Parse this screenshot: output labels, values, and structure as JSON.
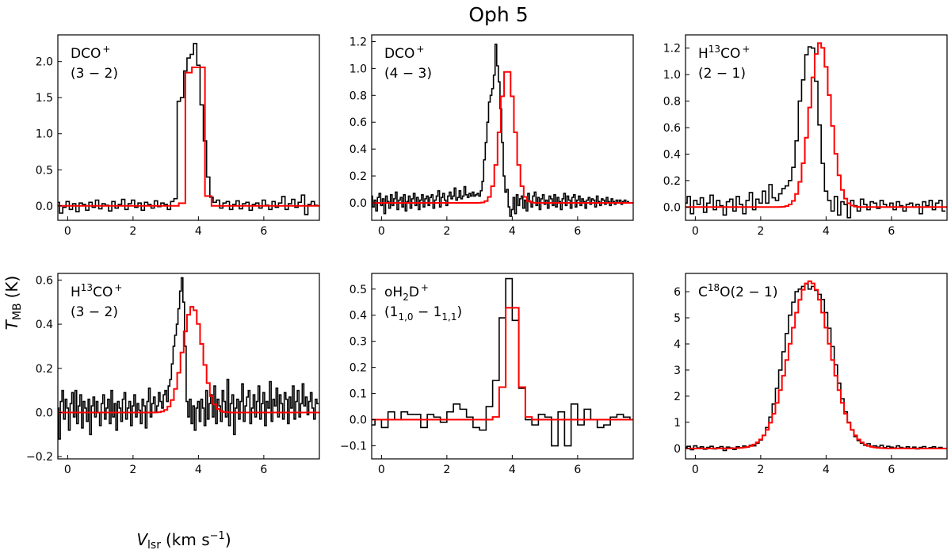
{
  "title": "Oph 5",
  "xlabel": "V",
  "xlabel_sub": "lsr",
  "xlabel_units": "(km s",
  "xlabel_units_sup": "−1",
  "xlabel_units_end": ")",
  "ylabel": "T",
  "ylabel_sub": "MB",
  "ylabel_units": "(K)",
  "colors": {
    "observed": "#000000",
    "model": "#ff0000",
    "axes": "#000000",
    "background": "#ffffff"
  },
  "chart_data": [
    {
      "type": "line",
      "label_parts": [
        {
          "text": "DCO",
          "sup": "+"
        },
        {
          "text": "(3 − 2)",
          "newline": true
        }
      ],
      "xlim": [
        -0.3,
        7.7
      ],
      "ylim": [
        -0.2,
        2.37
      ],
      "xticks": [
        0,
        2,
        4,
        6
      ],
      "yticks": [
        0.0,
        0.5,
        1.0,
        1.5,
        2.0
      ],
      "ytick_decimals": 1,
      "model": {
        "center": 3.92,
        "amplitude": 1.92,
        "width": 0.36,
        "flat": true,
        "step": 0.2
      },
      "observed": {
        "step": 0.1,
        "x_start": -0.3,
        "values": [
          0.05,
          -0.1,
          -0.02,
          0.06,
          -0.05,
          0.03,
          -0.08,
          0.04,
          0.02,
          -0.06,
          0.05,
          -0.02,
          0.08,
          -0.04,
          0.03,
          0.01,
          -0.07,
          0.06,
          -0.03,
          0.02,
          0.09,
          -0.05,
          0.03,
          0.08,
          -0.02,
          0.04,
          -0.06,
          0.05,
          0.02,
          -0.03,
          0.07,
          -0.01,
          0.04,
          0.02,
          -0.05,
          0.06,
          0.1,
          1.45,
          1.5,
          1.87,
          2.05,
          2.1,
          2.25,
          1.95,
          1.4,
          0.9,
          0.4,
          0.12,
          0.05,
          0.08,
          -0.03,
          0.04,
          0.06,
          -0.05,
          0.02,
          0.07,
          -0.04,
          0.03,
          0.05,
          -0.06,
          0.02,
          0.04,
          -0.03,
          0.08,
          0.01,
          -0.05,
          0.06,
          -0.02,
          0.04,
          0.13,
          -0.05,
          0.03,
          0.09,
          -0.02,
          0.05,
          0.15,
          -0.12,
          0.02,
          0.06,
          0.01
        ]
      }
    },
    {
      "type": "line",
      "label_parts": [
        {
          "text": "DCO",
          "sup": "+"
        },
        {
          "text": "(4 − 3)",
          "newline": true
        }
      ],
      "xlim": [
        -0.3,
        7.7
      ],
      "ylim": [
        -0.13,
        1.25
      ],
      "xticks": [
        0,
        2,
        4,
        6
      ],
      "yticks": [
        0.0,
        0.2,
        0.4,
        0.6,
        0.8,
        1.0,
        1.2
      ],
      "ytick_decimals": 1,
      "model": {
        "center": 3.85,
        "amplitude": 1.0,
        "width": 0.22,
        "flat": false,
        "step": 0.1
      },
      "observed": {
        "step": 0.05,
        "x_start": -0.3,
        "values": [
          0.05,
          -0.03,
          0.02,
          -0.06,
          0.04,
          0.07,
          -0.02,
          0.03,
          -0.08,
          0.05,
          0.01,
          -0.04,
          0.06,
          -0.02,
          0.03,
          0.08,
          -0.05,
          0.02,
          0.04,
          -0.03,
          0.06,
          -0.06,
          0.01,
          0.05,
          -0.04,
          0.03,
          0.07,
          -0.02,
          0.04,
          -0.05,
          0.02,
          0.06,
          -0.03,
          0.03,
          0.05,
          -0.02,
          0.04,
          0.06,
          -0.04,
          0.02,
          0.05,
          0.09,
          -0.03,
          0.04,
          0.07,
          0.02,
          -0.02,
          0.05,
          0.08,
          0.03,
          0.05,
          0.11,
          0.02,
          0.04,
          0.09,
          0.03,
          0.05,
          0.12,
          0.06,
          0.04,
          0.07,
          0.05,
          0.08,
          0.05,
          0.06,
          0.07,
          0.05,
          0.09,
          0.16,
          0.32,
          0.45,
          0.6,
          0.75,
          0.8,
          0.85,
          0.95,
          1.18,
          1.02,
          0.9,
          0.7,
          0.45,
          0.2,
          0.08,
          0.1,
          -0.03,
          -0.1,
          -0.05,
          0.04,
          -0.08,
          0.06,
          -0.02,
          0.03,
          0.05,
          -0.04,
          0.02,
          -0.06,
          0.07,
          0.01,
          -0.03,
          0.05,
          0.08,
          -0.02,
          0.04,
          -0.05,
          0.03,
          0.06,
          -0.01,
          0.02,
          -0.04,
          0.05,
          0.03,
          -0.02,
          0.06,
          -0.03,
          0.04,
          0.01,
          -0.05,
          0.03,
          0.07,
          -0.02,
          0.05,
          0.02,
          -0.04,
          0.04,
          0.06,
          -0.03,
          0.02,
          0.05,
          -0.02,
          0.03,
          0.01,
          -0.04,
          0.02,
          0.04,
          -0.01,
          0.03,
          0.02,
          -0.03,
          0.05,
          0.01,
          -0.02,
          0.03,
          0.02,
          -0.01,
          0.04,
          0.01,
          -0.02,
          0.03,
          0.01,
          -0.01,
          0.02,
          0.0,
          0.02,
          -0.01,
          0.01,
          0.02,
          0.0,
          0.01
        ]
      }
    },
    {
      "type": "line",
      "label_parts": [
        {
          "text": "H"
        },
        {
          "text": "13",
          "sup_only": true
        },
        {
          "text": "CO",
          "sup": "+"
        },
        {
          "text": "(2 − 1)",
          "newline": true
        }
      ],
      "xlim": [
        -0.3,
        7.7
      ],
      "ylim": [
        -0.1,
        1.3
      ],
      "xticks": [
        0,
        2,
        4,
        6
      ],
      "yticks": [
        0.0,
        0.2,
        0.4,
        0.6,
        0.8,
        1.0,
        1.2
      ],
      "ytick_decimals": 1,
      "model": {
        "center": 3.82,
        "amplitude": 1.24,
        "width": 0.32,
        "flat": false,
        "step": 0.1
      },
      "observed": {
        "step": 0.1,
        "x_start": -0.3,
        "values": [
          0.03,
          0.08,
          -0.05,
          0.05,
          0.02,
          0.07,
          -0.04,
          0.03,
          0.09,
          -0.02,
          0.05,
          0.01,
          -0.06,
          0.04,
          0.06,
          -0.03,
          0.08,
          0.02,
          -0.05,
          0.05,
          0.11,
          -0.02,
          0.06,
          0.03,
          0.12,
          0.03,
          0.17,
          0.07,
          0.05,
          0.1,
          0.14,
          0.16,
          0.2,
          0.3,
          0.5,
          0.8,
          0.96,
          1.15,
          1.21,
          1.2,
          0.95,
          0.62,
          0.33,
          0.12,
          0.05,
          -0.03,
          0.08,
          -0.06,
          0.04,
          0.02,
          -0.08,
          0.05,
          0.01,
          -0.03,
          0.06,
          0.02,
          -0.02,
          0.04,
          0.03,
          -0.01,
          0.05,
          0.02,
          0.0,
          0.03,
          -0.02,
          0.04,
          0.01,
          -0.03,
          0.02,
          0.03,
          0.0,
          0.02,
          -0.05,
          0.04,
          0.01,
          0.05,
          -0.02,
          0.03,
          0.05,
          -0.03
        ]
      }
    },
    {
      "type": "line",
      "label_parts": [
        {
          "text": "H"
        },
        {
          "text": "13",
          "sup_only": true
        },
        {
          "text": "CO",
          "sup": "+"
        },
        {
          "text": "(3 − 2)",
          "newline": true
        }
      ],
      "xlim": [
        -0.3,
        7.7
      ],
      "ylim": [
        -0.21,
        0.63
      ],
      "xticks": [
        0,
        2,
        4,
        6
      ],
      "yticks": [
        -0.2,
        0.0,
        0.2,
        0.4,
        0.6
      ],
      "ytick_decimals": 1,
      "model": {
        "center": 3.82,
        "amplitude": 0.48,
        "width": 0.3,
        "flat": false,
        "step": 0.1
      },
      "observed": {
        "step": 0.05,
        "x_start": -0.3,
        "values": [
          0.02,
          -0.12,
          0.05,
          0.1,
          -0.03,
          0.06,
          0.02,
          -0.08,
          0.04,
          0.09,
          -0.02,
          0.1,
          -0.05,
          0.03,
          0.08,
          -0.07,
          0.05,
          0.02,
          -0.04,
          0.06,
          -0.1,
          0.03,
          0.07,
          -0.02,
          0.05,
          0.0,
          -0.06,
          0.04,
          0.08,
          -0.03,
          0.02,
          0.06,
          -0.05,
          0.1,
          -0.02,
          0.04,
          -0.08,
          0.05,
          0.02,
          -0.04,
          0.06,
          0.09,
          -0.03,
          0.02,
          0.05,
          -0.06,
          0.03,
          0.08,
          -0.02,
          0.04,
          0.01,
          -0.05,
          0.06,
          0.03,
          -0.07,
          0.05,
          0.11,
          -0.02,
          0.04,
          0.07,
          0.0,
          0.03,
          0.09,
          0.05,
          0.02,
          0.08,
          0.1,
          0.05,
          0.12,
          0.15,
          0.22,
          0.3,
          0.35,
          0.4,
          0.47,
          0.55,
          0.61,
          0.5,
          0.3,
          0.05,
          -0.02,
          0.06,
          -0.05,
          0.03,
          -0.08,
          0.02,
          0.05,
          -0.04,
          0.06,
          0.02,
          -0.06,
          0.1,
          -0.03,
          0.04,
          0.08,
          -0.02,
          0.12,
          -0.05,
          0.06,
          0.03,
          -0.04,
          0.1,
          0.05,
          -0.02,
          0.15,
          -0.06,
          0.04,
          0.08,
          -0.1,
          0.02,
          0.06,
          -0.03,
          0.05,
          0.13,
          -0.04,
          0.03,
          0.07,
          0.1,
          -0.05,
          0.02,
          0.08,
          -0.02,
          0.05,
          0.12,
          -0.03,
          0.04,
          0.09,
          -0.06,
          0.05,
          0.02,
          0.14,
          -0.04,
          0.06,
          0.03,
          0.11,
          -0.02,
          0.08,
          0.04,
          -0.03,
          0.09,
          0.06,
          -0.05,
          0.07,
          0.02,
          0.12,
          -0.03,
          0.05,
          0.1,
          -0.02,
          0.04,
          0.13,
          0.03,
          0.07,
          -0.01,
          0.05,
          0.09,
          0.02,
          -0.03,
          0.06,
          0.04
        ]
      }
    },
    {
      "type": "line",
      "label_parts": [
        {
          "text": "oH"
        },
        {
          "text": "2",
          "sub_only": true
        },
        {
          "text": "D",
          "sup": "+"
        },
        {
          "text": "(1",
          "newline": true
        },
        {
          "text": "1,0",
          "sub_only": true
        },
        {
          "text": " − 1"
        },
        {
          "text": "1,1",
          "sub_only": true
        },
        {
          "text": ")"
        }
      ],
      "xlim": [
        -0.3,
        7.7
      ],
      "ylim": [
        -0.15,
        0.56
      ],
      "xticks": [
        0,
        2,
        4,
        6
      ],
      "yticks": [
        -0.1,
        0.0,
        0.1,
        0.2,
        0.3,
        0.4,
        0.5
      ],
      "ytick_decimals": 1,
      "model": {
        "center": 4.0,
        "amplitude": 0.5,
        "width": 0.18,
        "flat": false,
        "step": 0.2
      },
      "observed": {
        "step": 0.2,
        "x_start": -0.3,
        "values": [
          -0.02,
          0.0,
          -0.03,
          0.03,
          0.0,
          0.03,
          0.02,
          0.02,
          -0.03,
          0.02,
          0.01,
          -0.01,
          0.03,
          0.06,
          0.04,
          0.01,
          -0.03,
          -0.04,
          0.05,
          0.15,
          0.39,
          0.54,
          0.38,
          0.12,
          0.0,
          -0.02,
          0.02,
          0.01,
          -0.1,
          0.03,
          -0.1,
          0.06,
          -0.02,
          0.04,
          0.0,
          -0.03,
          -0.02,
          0.01,
          0.02,
          0.01,
          0.0
        ]
      }
    },
    {
      "type": "line",
      "label_parts": [
        {
          "text": "C"
        },
        {
          "text": "18",
          "sup_only": true
        },
        {
          "text": "O(2 − 1)"
        }
      ],
      "xlim": [
        -0.3,
        7.7
      ],
      "ylim": [
        -0.4,
        6.7
      ],
      "xticks": [
        0,
        2,
        4,
        6
      ],
      "yticks": [
        0,
        1,
        2,
        3,
        4,
        5,
        6
      ],
      "ytick_decimals": 0,
      "model": {
        "center": 3.5,
        "amplitude": 6.4,
        "width": 0.62,
        "flat": false,
        "step": 0.1
      },
      "observed": {
        "step": 0.1,
        "x_start": -0.3,
        "values": [
          0.05,
          0.08,
          -0.05,
          0.1,
          0.02,
          0.06,
          -0.03,
          0.04,
          0.08,
          -0.02,
          0.03,
          0.07,
          -0.08,
          0.05,
          0.02,
          -0.04,
          0.06,
          0.03,
          0.09,
          0.05,
          0.12,
          0.1,
          0.2,
          0.32,
          0.5,
          0.8,
          1.2,
          1.7,
          2.3,
          3.0,
          3.7,
          4.4,
          5.1,
          5.6,
          6.0,
          6.1,
          6.2,
          6.3,
          6.1,
          6.2,
          6.05,
          5.9,
          5.7,
          5.2,
          4.6,
          3.9,
          3.2,
          2.5,
          1.9,
          1.4,
          1.0,
          0.7,
          0.45,
          0.3,
          0.2,
          0.12,
          0.18,
          0.08,
          0.1,
          0.05,
          0.12,
          0.03,
          0.08,
          0.05,
          0.02,
          0.1,
          0.04,
          0.01,
          0.06,
          0.0,
          0.05,
          -0.02,
          0.04,
          0.07,
          0.0,
          0.03,
          0.06,
          0.01,
          0.04,
          0.0
        ]
      }
    }
  ]
}
